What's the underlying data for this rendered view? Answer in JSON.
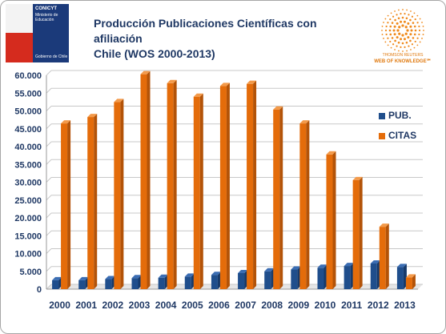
{
  "header": {
    "logo_lines": [
      "CONICYT",
      "Ministerio de Educación"
    ],
    "logo_footer": "Gobierno de Chile",
    "title_line1": "Producción Publicaciones Científicas con afiliación",
    "title_line2": "Chile (WOS 2000-2013)",
    "wok_line1": "THOMSON REUTERS",
    "wok_line2": "WEB OF KNOWLEDGE℠"
  },
  "colors": {
    "pub": "#1f4e8c",
    "citas": "#e46c0a",
    "axis_text": "#1f3864"
  },
  "chart_data": {
    "type": "bar",
    "title": "",
    "xlabel": "",
    "ylabel": "",
    "categories": [
      "2000",
      "2001",
      "2002",
      "2003",
      "2004",
      "2005",
      "2006",
      "2007",
      "2008",
      "2009",
      "2010",
      "2011",
      "2012",
      "2013"
    ],
    "series": [
      {
        "name": "PUB.",
        "values": [
          2500,
          2500,
          2800,
          3100,
          3200,
          3500,
          4000,
          4500,
          5000,
          5500,
          6000,
          6500,
          7200,
          6200
        ]
      },
      {
        "name": "CITAS",
        "values": [
          46500,
          48300,
          52500,
          60300,
          57800,
          54000,
          57000,
          57600,
          50400,
          46500,
          37800,
          30600,
          17500,
          3300
        ]
      }
    ],
    "ylim": [
      0,
      60000
    ],
    "yticks": [
      "0",
      "5.000",
      "10.000",
      "15.000",
      "20.000",
      "25.000",
      "30.000",
      "35.000",
      "40.000",
      "45.000",
      "50.000",
      "55.000",
      "60.000"
    ],
    "grid": true,
    "legend_position": "right"
  }
}
